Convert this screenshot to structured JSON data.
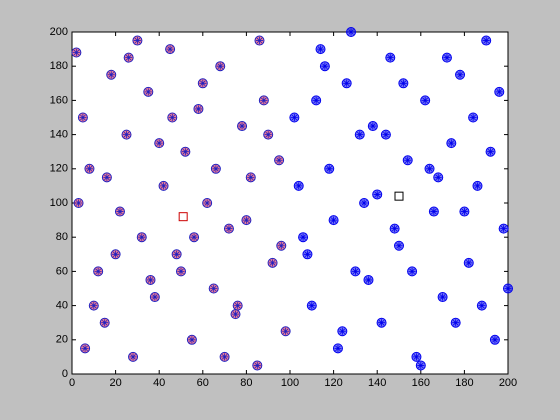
{
  "chart_data": {
    "type": "scatter",
    "xlim": [
      0,
      200
    ],
    "ylim": [
      0,
      200
    ],
    "xticks": [
      0,
      20,
      40,
      60,
      80,
      100,
      120,
      140,
      160,
      180,
      200
    ],
    "yticks": [
      0,
      20,
      40,
      60,
      80,
      100,
      120,
      140,
      160,
      180,
      200
    ],
    "series": [
      {
        "color": "#e0103a",
        "edge": "#2020c0",
        "marker": "circle-star",
        "x": [
          2,
          5,
          8,
          12,
          15,
          18,
          22,
          25,
          28,
          32,
          35,
          38,
          42,
          45,
          48,
          52,
          55,
          58,
          62,
          65,
          68,
          72,
          75,
          78,
          82,
          85,
          88,
          92,
          95,
          98,
          3,
          10,
          20,
          30,
          40,
          50,
          60,
          70,
          80,
          90,
          6,
          16,
          26,
          36,
          46,
          56,
          66,
          76,
          86,
          96
        ],
        "values": [
          188,
          150,
          120,
          60,
          30,
          175,
          95,
          140,
          10,
          80,
          165,
          45,
          110,
          190,
          70,
          130,
          20,
          155,
          100,
          50,
          180,
          85,
          35,
          145,
          115,
          5,
          160,
          65,
          125,
          25,
          100,
          40,
          70,
          195,
          135,
          60,
          170,
          10,
          90,
          140,
          15,
          115,
          185,
          55,
          150,
          80,
          120,
          40,
          195,
          75
        ]
      },
      {
        "color": "#0000ee",
        "edge": "#0000ee",
        "marker": "circle-star",
        "x": [
          102,
          106,
          110,
          114,
          118,
          122,
          126,
          130,
          134,
          138,
          142,
          146,
          150,
          154,
          158,
          162,
          166,
          170,
          174,
          178,
          182,
          186,
          190,
          194,
          198,
          104,
          112,
          120,
          128,
          136,
          144,
          152,
          160,
          168,
          176,
          184,
          192,
          108,
          124,
          140,
          156,
          172,
          188,
          116,
          132,
          148,
          164,
          180,
          196,
          200
        ],
        "values": [
          150,
          80,
          40,
          190,
          120,
          15,
          170,
          60,
          100,
          145,
          30,
          185,
          75,
          125,
          10,
          160,
          95,
          45,
          135,
          175,
          65,
          110,
          195,
          20,
          85,
          110,
          160,
          90,
          200,
          55,
          140,
          170,
          5,
          115,
          30,
          150,
          130,
          70,
          25,
          105,
          60,
          185,
          40,
          180,
          140,
          85,
          120,
          95,
          165,
          50
        ]
      },
      {
        "color": "#cc0000",
        "marker": "square",
        "x": [
          51
        ],
        "values": [
          92
        ]
      },
      {
        "color": "#000000",
        "marker": "square",
        "x": [
          150
        ],
        "values": [
          104
        ]
      }
    ]
  }
}
